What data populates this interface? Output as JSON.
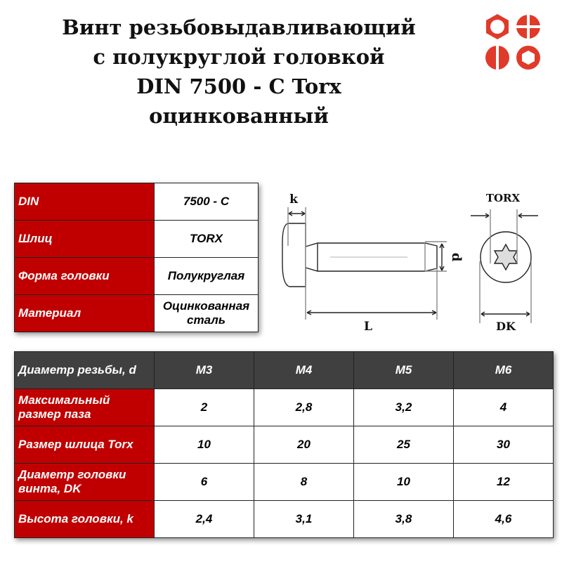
{
  "title": {
    "lines": [
      "Винт резьбовыдавливающий",
      "с полукруглой головкой",
      "DIN 7500 - C Torx",
      "оцинкованный"
    ]
  },
  "logo": {
    "icon": "fastener-heads-logo-icon",
    "color": "#e03a2a"
  },
  "colors": {
    "label_bg": "#c00000",
    "header_bg": "#404040"
  },
  "spec_table": {
    "rows": [
      {
        "label": "DIN",
        "value": "7500 - C"
      },
      {
        "label": "Шлиц",
        "value": "TORX"
      },
      {
        "label": "Форма головки",
        "value": "Полукруглая"
      },
      {
        "label": "Материал",
        "value": "Оцинкованная сталь"
      }
    ]
  },
  "drawing": {
    "labels": {
      "k": "k",
      "d": "d",
      "L": "L",
      "torx": "TORX",
      "dk": "DK"
    }
  },
  "size_table": {
    "header_label": "Диаметр резьбы, d",
    "columns": [
      "M3",
      "M4",
      "M5",
      "M6"
    ],
    "rows": [
      {
        "label": "Максимальный размер паза",
        "values": [
          "2",
          "2,8",
          "3,2",
          "4"
        ]
      },
      {
        "label": "Размер шлица Torx",
        "values": [
          "10",
          "20",
          "25",
          "30"
        ]
      },
      {
        "label": "Диаметр головки винта, DK",
        "values": [
          "6",
          "8",
          "10",
          "12"
        ]
      },
      {
        "label": "Высота головки, k",
        "values": [
          "2,4",
          "3,1",
          "3,8",
          "4,6"
        ]
      }
    ]
  }
}
